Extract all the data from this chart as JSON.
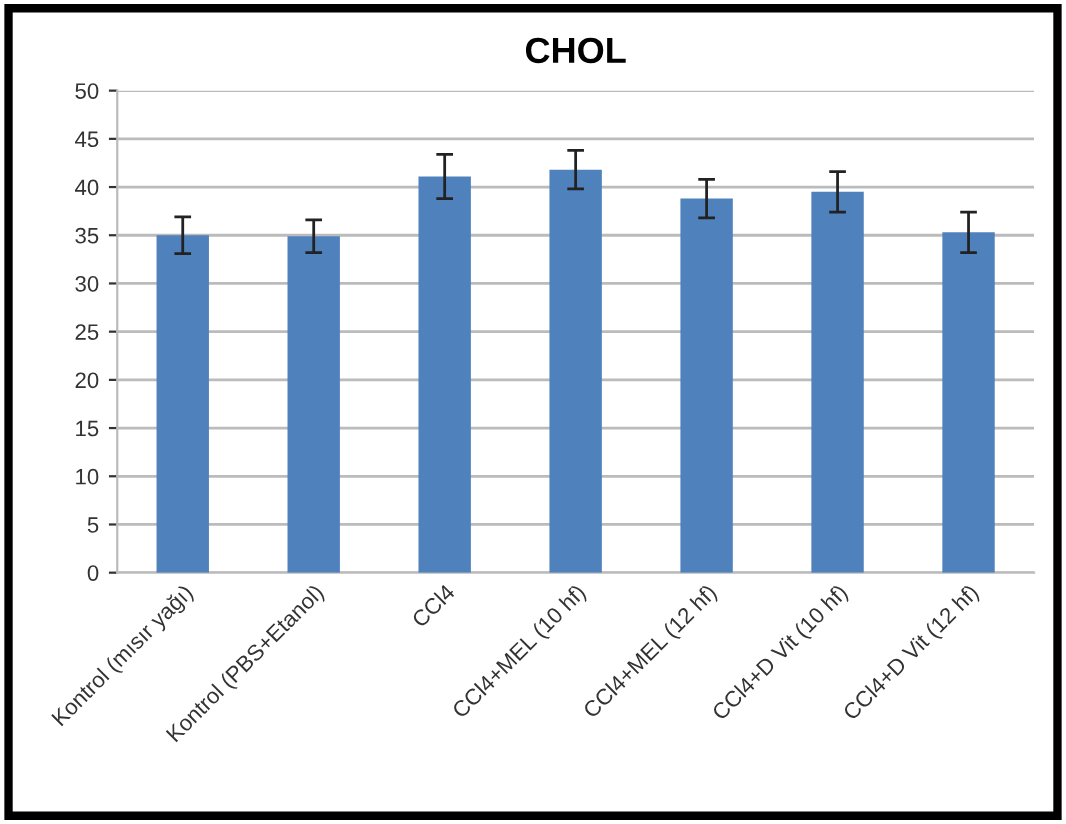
{
  "chart_data": {
    "type": "bar",
    "title": "CHOL",
    "categories": [
      "Kontrol (mısır yağı)",
      "Kontrol (PBS+Etanol)",
      "CCl4",
      "CCl4+MEL (10 hf)",
      "CCl4+MEL (12 hf)",
      "CCl4+D Vit (10 hf)",
      "CCl4+D Vit (12 hf)"
    ],
    "values": [
      35.0,
      34.9,
      41.1,
      41.8,
      38.8,
      39.5,
      35.3
    ],
    "errors": [
      1.9,
      1.7,
      2.3,
      2.0,
      2.0,
      2.1,
      2.1
    ],
    "color": "#4f81bd",
    "ylim": [
      0,
      50
    ],
    "yticks": [
      0,
      5,
      10,
      15,
      20,
      25,
      30,
      35,
      40,
      45,
      50
    ],
    "grid": "y"
  }
}
